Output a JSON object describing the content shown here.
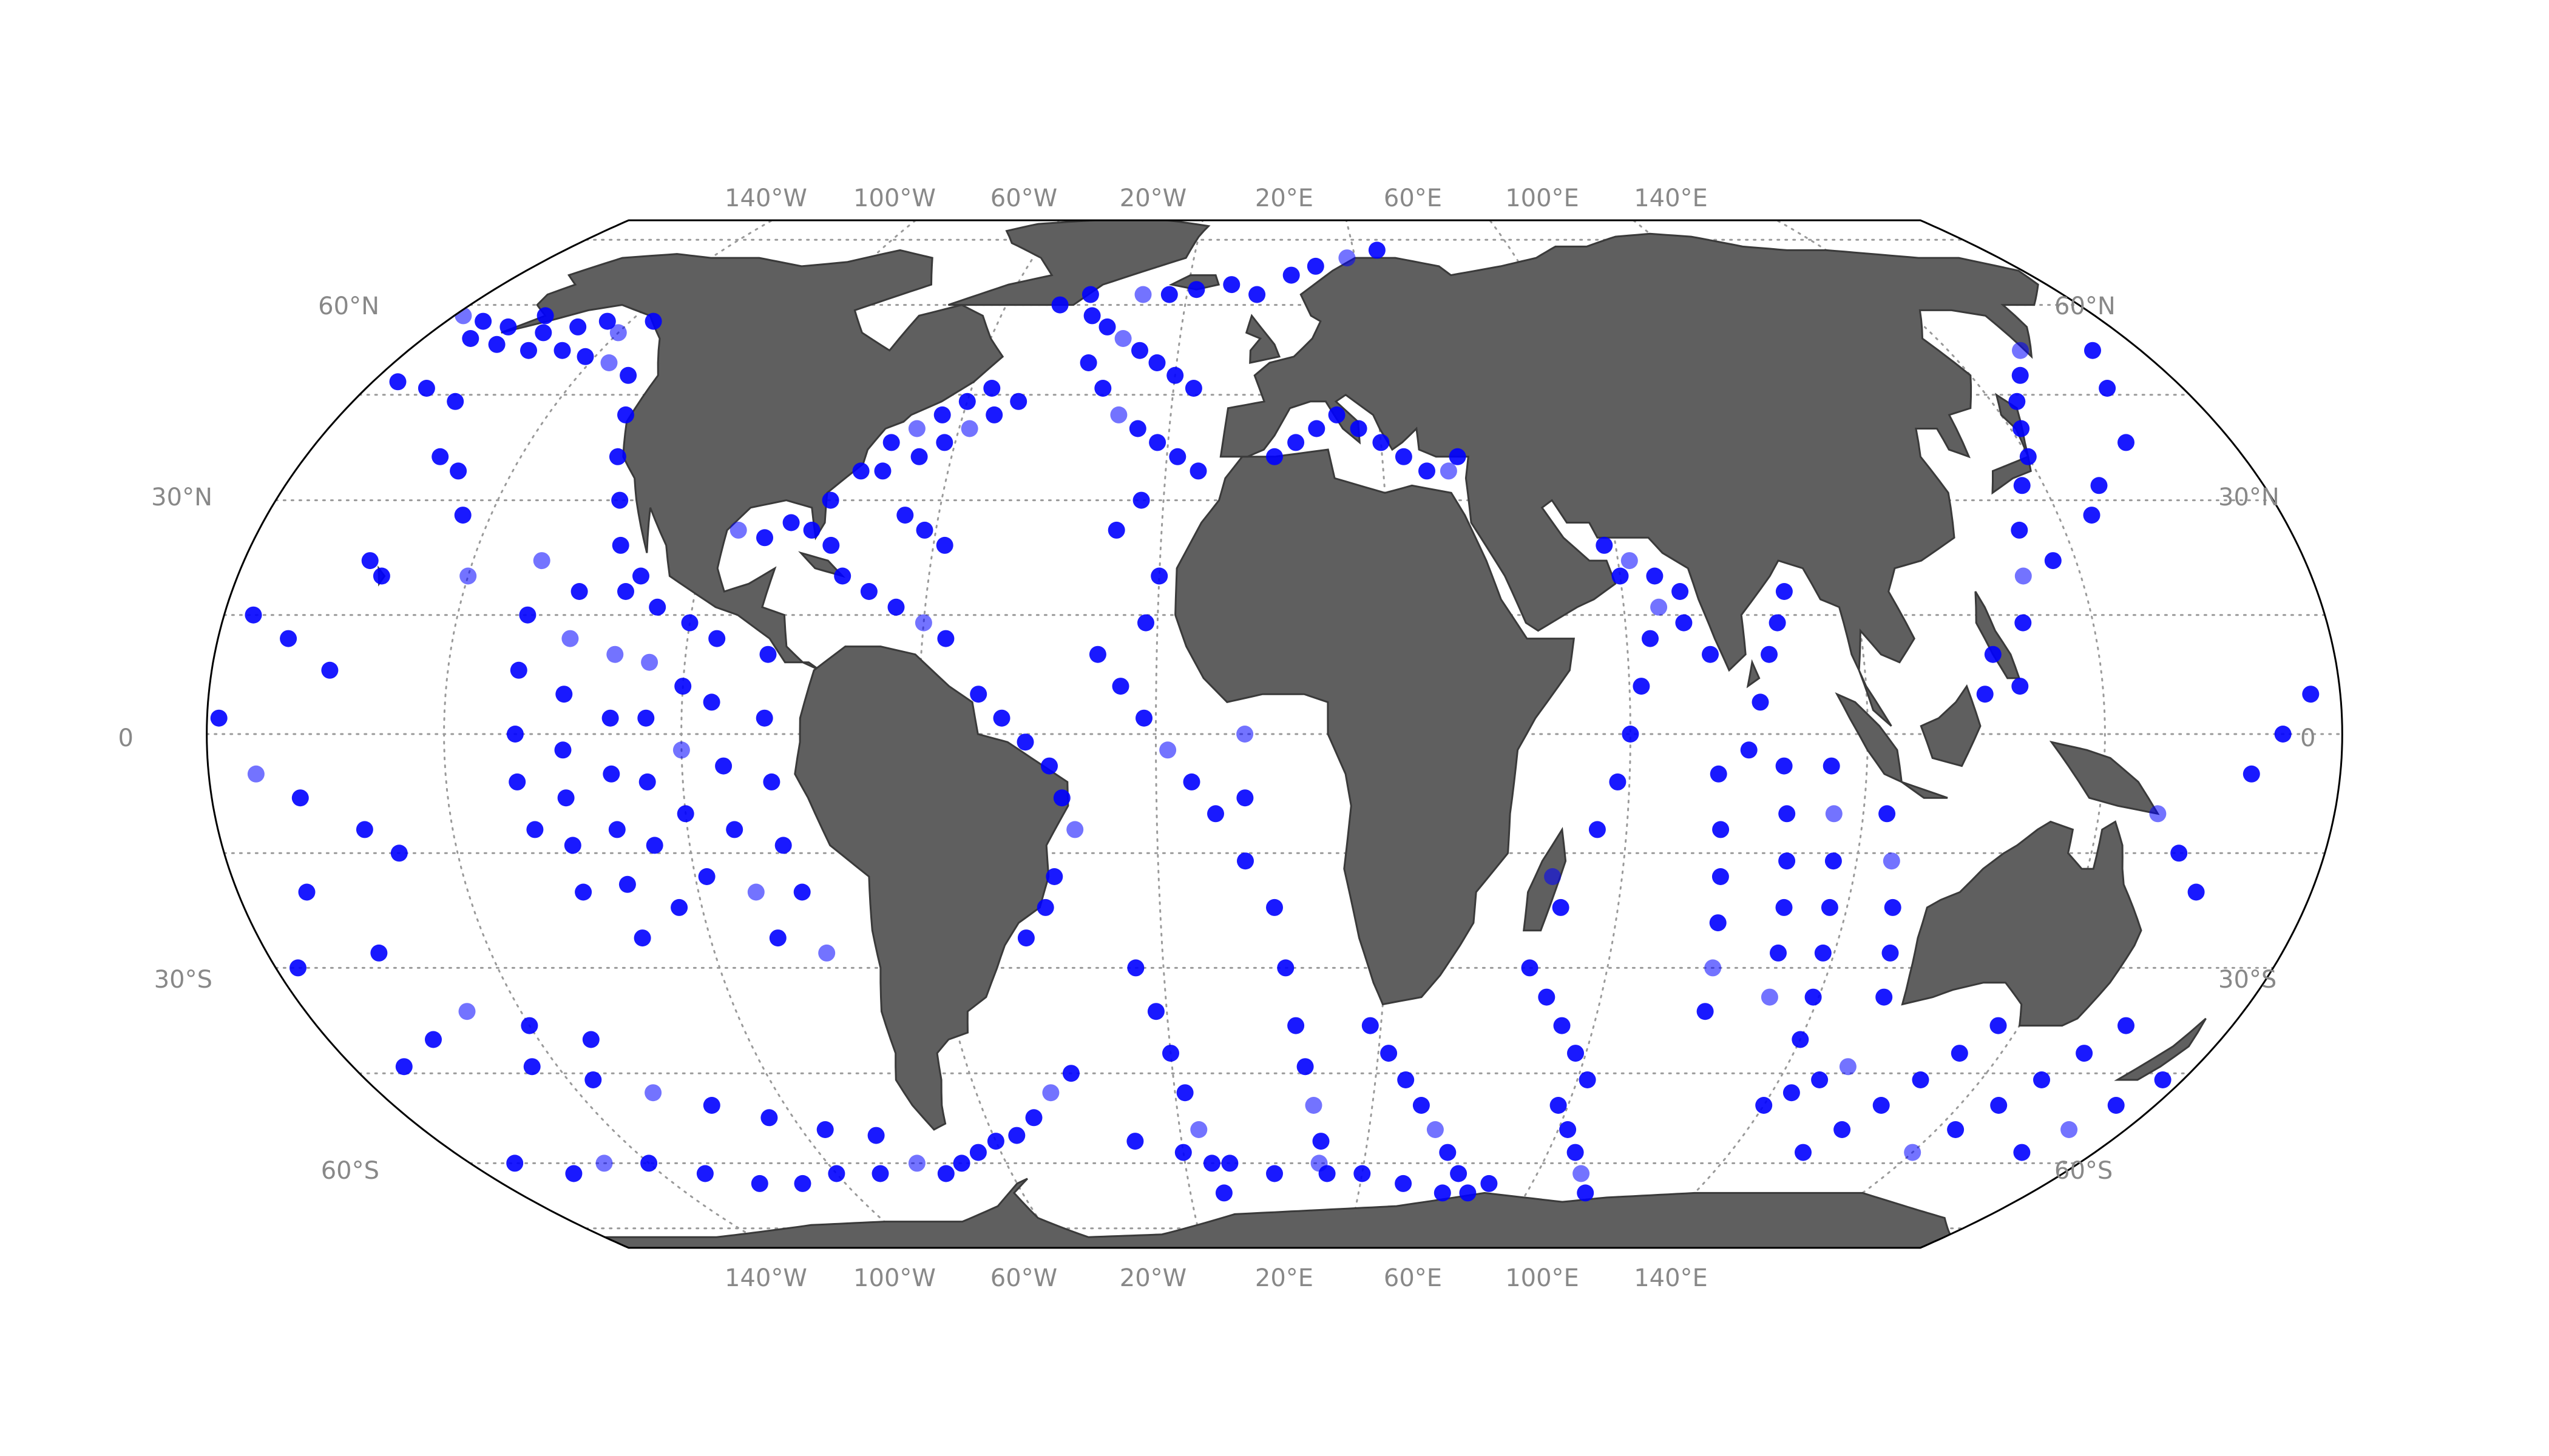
{
  "map": {
    "projection": "Equal Earth",
    "colors": {
      "land": "#5f5f5f",
      "land_stroke": "#3a3a3a",
      "ocean": "#ffffff",
      "graticule": "#9a9a9a",
      "points": "#0000ff",
      "frame": "#000000"
    },
    "longitude_labels": [
      "140°W",
      "100°W",
      "60°W",
      "20°W",
      "20°E",
      "60°E",
      "100°E",
      "140°E"
    ],
    "latitude_labels_left": [
      "60°N",
      "30°N",
      "0",
      "30°S",
      "60°S"
    ],
    "latitude_labels_right": [
      "60°N",
      "30°N",
      "0",
      "30°S",
      "60°S"
    ]
  },
  "points": [
    [
      -178,
      58
    ],
    [
      -172,
      57
    ],
    [
      -165,
      56
    ],
    [
      -160,
      58
    ],
    [
      -156,
      55
    ],
    [
      -150,
      56
    ],
    [
      -145,
      57
    ],
    [
      -140,
      55
    ],
    [
      -135,
      57
    ],
    [
      -170,
      54
    ],
    [
      -163,
      53
    ],
    [
      -155,
      52
    ],
    [
      -148,
      52
    ],
    [
      -142,
      51
    ],
    [
      -136,
      50
    ],
    [
      -175,
      47
    ],
    [
      -168,
      46
    ],
    [
      -160,
      44
    ],
    [
      -155,
      36
    ],
    [
      -150,
      34
    ],
    [
      -145,
      28
    ],
    [
      -140,
      20
    ],
    [
      -155,
      20
    ],
    [
      -158,
      22
    ],
    [
      -160,
      8
    ],
    [
      -168,
      12
    ],
    [
      -175,
      15
    ],
    [
      -178,
      2
    ],
    [
      -172,
      -5
    ],
    [
      -165,
      -8
    ],
    [
      -155,
      -12
    ],
    [
      -150,
      -15
    ],
    [
      -168,
      -20
    ],
    [
      -176,
      -30
    ],
    [
      -160,
      -28
    ],
    [
      -128,
      22
    ],
    [
      -128,
      15
    ],
    [
      -128,
      8
    ],
    [
      -128,
      0
    ],
    [
      -128,
      -6
    ],
    [
      -126,
      -12
    ],
    [
      -120,
      18
    ],
    [
      -120,
      12
    ],
    [
      -120,
      5
    ],
    [
      -120,
      -2
    ],
    [
      -120,
      -8
    ],
    [
      -120,
      -14
    ],
    [
      -120,
      -20
    ],
    [
      -112,
      18
    ],
    [
      -112,
      10
    ],
    [
      -112,
      2
    ],
    [
      -112,
      -5
    ],
    [
      -112,
      -12
    ],
    [
      -112,
      -19
    ],
    [
      -112,
      -26
    ],
    [
      -106,
      16
    ],
    [
      -106,
      9
    ],
    [
      -106,
      2
    ],
    [
      -106,
      -6
    ],
    [
      -106,
      -14
    ],
    [
      -104,
      -22
    ],
    [
      -100,
      14
    ],
    [
      -100,
      6
    ],
    [
      -100,
      -2
    ],
    [
      -100,
      -10
    ],
    [
      -98,
      -18
    ],
    [
      -95,
      12
    ],
    [
      -95,
      4
    ],
    [
      -93,
      -4
    ],
    [
      -92,
      -12
    ],
    [
      -90,
      -20
    ],
    [
      -88,
      -26
    ],
    [
      -86,
      10
    ],
    [
      -86,
      2
    ],
    [
      -85,
      -6
    ],
    [
      -84,
      -14
    ],
    [
      -82,
      -20
    ],
    [
      -80,
      -28
    ],
    [
      -122,
      36
    ],
    [
      -125,
      42
    ],
    [
      -130,
      48
    ],
    [
      -118,
      30
    ],
    [
      -115,
      24
    ],
    [
      -110,
      20
    ],
    [
      -95,
      26
    ],
    [
      -90,
      25
    ],
    [
      -86,
      27
    ],
    [
      -82,
      26
    ],
    [
      -80,
      30
    ],
    [
      -76,
      34
    ],
    [
      -72,
      38
    ],
    [
      -68,
      40
    ],
    [
      -64,
      42
    ],
    [
      -60,
      44
    ],
    [
      -56,
      46
    ],
    [
      -72,
      34
    ],
    [
      -66,
      36
    ],
    [
      -62,
      38
    ],
    [
      -58,
      40
    ],
    [
      -54,
      42
    ],
    [
      -50,
      44
    ],
    [
      -78,
      24
    ],
    [
      -75,
      20
    ],
    [
      -70,
      18
    ],
    [
      -65,
      16
    ],
    [
      -60,
      14
    ],
    [
      -56,
      12
    ],
    [
      -66,
      28
    ],
    [
      -62,
      26
    ],
    [
      -58,
      24
    ],
    [
      -40,
      58
    ],
    [
      -36,
      56
    ],
    [
      -32,
      54
    ],
    [
      -28,
      52
    ],
    [
      -24,
      50
    ],
    [
      -20,
      48
    ],
    [
      -16,
      46
    ],
    [
      -38,
      50
    ],
    [
      -34,
      46
    ],
    [
      -30,
      42
    ],
    [
      -26,
      40
    ],
    [
      -22,
      38
    ],
    [
      -18,
      36
    ],
    [
      -14,
      34
    ],
    [
      -42,
      62
    ],
    [
      -48,
      60
    ],
    [
      -30,
      62
    ],
    [
      -24,
      62
    ],
    [
      -18,
      63
    ],
    [
      -10,
      64
    ],
    [
      -4,
      62
    ],
    [
      4,
      66
    ],
    [
      10,
      68
    ],
    [
      18,
      70
    ],
    [
      26,
      72
    ],
    [
      -50,
      5
    ],
    [
      -46,
      2
    ],
    [
      -42,
      -1
    ],
    [
      -38,
      -4
    ],
    [
      -36,
      -8
    ],
    [
      -34,
      -12
    ],
    [
      -38,
      -18
    ],
    [
      -40,
      -22
    ],
    [
      -44,
      -26
    ],
    [
      -30,
      10
    ],
    [
      -26,
      6
    ],
    [
      -22,
      2
    ],
    [
      -18,
      -2
    ],
    [
      -14,
      -6
    ],
    [
      -10,
      -10
    ],
    [
      -20,
      20
    ],
    [
      -22,
      14
    ],
    [
      -28,
      26
    ],
    [
      -24,
      30
    ],
    [
      -5,
      0
    ],
    [
      -5,
      -8
    ],
    [
      -5,
      -16
    ],
    [
      0,
      -22
    ],
    [
      2,
      -30
    ],
    [
      4,
      -38
    ],
    [
      6,
      -44
    ],
    [
      8,
      -50
    ],
    [
      10,
      -56
    ],
    [
      12,
      -62
    ],
    [
      -25,
      -30
    ],
    [
      -22,
      -36
    ],
    [
      -20,
      -42
    ],
    [
      -18,
      -48
    ],
    [
      -16,
      -54
    ],
    [
      -14,
      -60
    ],
    [
      -12,
      -66
    ],
    [
      18,
      -38
    ],
    [
      22,
      -42
    ],
    [
      26,
      -46
    ],
    [
      30,
      -50
    ],
    [
      34,
      -54
    ],
    [
      38,
      -58
    ],
    [
      42,
      -62
    ],
    [
      46,
      -66
    ],
    [
      58,
      -50
    ],
    [
      62,
      -54
    ],
    [
      66,
      -58
    ],
    [
      70,
      -62
    ],
    [
      74,
      -66
    ],
    [
      46,
      -30
    ],
    [
      50,
      -34
    ],
    [
      54,
      -38
    ],
    [
      58,
      -42
    ],
    [
      62,
      -46
    ],
    [
      48,
      -18
    ],
    [
      50,
      -22
    ],
    [
      55,
      -12
    ],
    [
      58,
      -6
    ],
    [
      60,
      0
    ],
    [
      62,
      6
    ],
    [
      64,
      12
    ],
    [
      66,
      16
    ],
    [
      60,
      20
    ],
    [
      70,
      18
    ],
    [
      75,
      -5
    ],
    [
      76,
      -12
    ],
    [
      77,
      -18
    ],
    [
      78,
      -24
    ],
    [
      79,
      -30
    ],
    [
      80,
      -36
    ],
    [
      86,
      -4
    ],
    [
      87,
      -10
    ],
    [
      88,
      -16
    ],
    [
      89,
      -22
    ],
    [
      90,
      -28
    ],
    [
      91,
      -34
    ],
    [
      80,
      -2
    ],
    [
      82,
      4
    ],
    [
      84,
      10
    ],
    [
      86,
      14
    ],
    [
      88,
      18
    ],
    [
      94,
      -4
    ],
    [
      95,
      -10
    ],
    [
      96,
      -16
    ],
    [
      97,
      -22
    ],
    [
      98,
      -28
    ],
    [
      99,
      -34
    ],
    [
      100,
      -40
    ],
    [
      104,
      -10
    ],
    [
      106,
      -16
    ],
    [
      108,
      -22
    ],
    [
      110,
      -28
    ],
    [
      112,
      -34
    ],
    [
      100,
      -50
    ],
    [
      104,
      -48
    ],
    [
      108,
      -46
    ],
    [
      112,
      -44
    ],
    [
      116,
      -58
    ],
    [
      120,
      -54
    ],
    [
      124,
      -50
    ],
    [
      128,
      -46
    ],
    [
      132,
      -42
    ],
    [
      136,
      -38
    ],
    [
      140,
      -58
    ],
    [
      144,
      -54
    ],
    [
      148,
      -50
    ],
    [
      152,
      -46
    ],
    [
      156,
      -42
    ],
    [
      160,
      -38
    ],
    [
      164,
      -58
    ],
    [
      168,
      -54
    ],
    [
      172,
      -50
    ],
    [
      176,
      -46
    ],
    [
      120,
      5
    ],
    [
      122,
      10
    ],
    [
      126,
      6
    ],
    [
      128,
      14
    ],
    [
      130,
      20
    ],
    [
      132,
      26
    ],
    [
      136,
      32
    ],
    [
      140,
      36
    ],
    [
      142,
      40
    ],
    [
      145,
      44
    ],
    [
      150,
      48
    ],
    [
      155,
      52
    ],
    [
      136,
      22
    ],
    [
      146,
      28
    ],
    [
      150,
      32
    ],
    [
      160,
      38
    ],
    [
      165,
      46
    ],
    [
      170,
      52
    ],
    [
      150,
      -10
    ],
    [
      155,
      -15
    ],
    [
      160,
      -20
    ],
    [
      165,
      -5
    ],
    [
      170,
      0
    ],
    [
      175,
      5
    ],
    [
      -40,
      -45
    ],
    [
      -45,
      -48
    ],
    [
      -50,
      -52
    ],
    [
      -55,
      -55
    ],
    [
      -60,
      -56
    ],
    [
      -65,
      -58
    ],
    [
      -70,
      -60
    ],
    [
      -75,
      -62
    ],
    [
      -80,
      -60
    ],
    [
      -90,
      -62
    ],
    [
      -100,
      -62
    ],
    [
      -110,
      -64
    ],
    [
      -120,
      -64
    ],
    [
      -130,
      -62
    ],
    [
      -140,
      -60
    ],
    [
      -150,
      -60
    ],
    [
      -160,
      -62
    ],
    [
      -170,
      -60
    ],
    [
      -85,
      -55
    ],
    [
      -95,
      -54
    ],
    [
      -105,
      -52
    ],
    [
      -115,
      -50
    ],
    [
      -125,
      -48
    ],
    [
      -135,
      -46
    ],
    [
      -145,
      -44
    ],
    [
      -30,
      -56
    ],
    [
      -20,
      -58
    ],
    [
      -10,
      -60
    ],
    [
      0,
      -62
    ],
    [
      10,
      -60
    ],
    [
      20,
      -62
    ],
    [
      30,
      -64
    ],
    [
      40,
      -66
    ],
    [
      50,
      -64
    ],
    [
      -130,
      -40
    ],
    [
      -140,
      -38
    ],
    [
      -150,
      -36
    ],
    [
      -160,
      -40
    ],
    [
      -170,
      -44
    ],
    [
      16,
      40
    ],
    [
      20,
      38
    ],
    [
      24,
      36
    ],
    [
      28,
      34
    ],
    [
      32,
      34
    ],
    [
      34,
      36
    ],
    [
      12,
      42
    ],
    [
      8,
      40
    ],
    [
      4,
      38
    ],
    [
      0,
      36
    ],
    [
      58,
      24
    ],
    [
      62,
      22
    ],
    [
      66,
      20
    ],
    [
      70,
      14
    ],
    [
      74,
      10
    ]
  ]
}
